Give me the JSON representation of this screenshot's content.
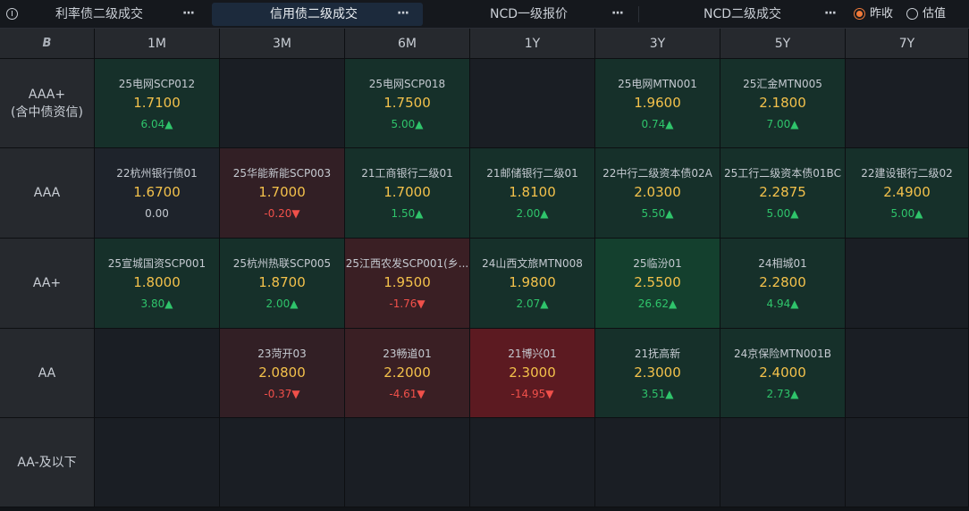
{
  "tabs": [
    {
      "label": "利率债二级成交",
      "active": false
    },
    {
      "label": "信用债二级成交",
      "active": true
    },
    {
      "label": "NCD一级报价",
      "active": false
    },
    {
      "label": "NCD二级成交",
      "active": false
    }
  ],
  "more_glyph": "···",
  "radios": [
    {
      "label": "昨收",
      "checked": true
    },
    {
      "label": "估值",
      "checked": false
    }
  ],
  "columns": [
    "1M",
    "3M",
    "6M",
    "1Y",
    "3Y",
    "5Y",
    "7Y"
  ],
  "corner_icon": "B",
  "rows": [
    {
      "label": [
        "AAA+",
        "(含中债资信)"
      ],
      "cells": [
        {
          "name": "25电网SCP012",
          "rate": "1.7100",
          "change": "6.04▲",
          "dir": "up",
          "tone": "up1"
        },
        null,
        {
          "name": "25电网SCP018",
          "rate": "1.7500",
          "change": "5.00▲",
          "dir": "up",
          "tone": "up1"
        },
        null,
        {
          "name": "25电网MTN001",
          "rate": "1.9600",
          "change": "0.74▲",
          "dir": "up",
          "tone": "up1"
        },
        {
          "name": "25汇金MTN005",
          "rate": "2.1800",
          "change": "7.00▲",
          "dir": "up",
          "tone": "up1"
        },
        null
      ]
    },
    {
      "label": [
        "AAA"
      ],
      "cells": [
        {
          "name": "22杭州银行债01",
          "rate": "1.6700",
          "change": "0.00",
          "dir": "zero",
          "tone": "flat"
        },
        {
          "name": "25华能新能SCP003",
          "rate": "1.7000",
          "change": "-0.20▼",
          "dir": "down",
          "tone": "dn1"
        },
        {
          "name": "21工商银行二级01",
          "rate": "1.7000",
          "change": "1.50▲",
          "dir": "up",
          "tone": "up1"
        },
        {
          "name": "21邮储银行二级01",
          "rate": "1.8100",
          "change": "2.00▲",
          "dir": "up",
          "tone": "up1"
        },
        {
          "name": "22中行二级资本债02A",
          "rate": "2.0300",
          "change": "5.50▲",
          "dir": "up",
          "tone": "up1"
        },
        {
          "name": "25工行二级资本债01BC",
          "rate": "2.2875",
          "change": "5.00▲",
          "dir": "up",
          "tone": "up1"
        },
        {
          "name": "22建设银行二级02",
          "rate": "2.4900",
          "change": "5.00▲",
          "dir": "up",
          "tone": "up1"
        }
      ]
    },
    {
      "label": [
        "AA+"
      ],
      "cells": [
        {
          "name": "25宣城国资SCP001",
          "rate": "1.8000",
          "change": "3.80▲",
          "dir": "up",
          "tone": "up1"
        },
        {
          "name": "25杭州热联SCP005",
          "rate": "1.8700",
          "change": "2.00▲",
          "dir": "up",
          "tone": "up1"
        },
        {
          "name": "25江西农发SCP001(乡...",
          "rate": "1.9500",
          "change": "-1.76▼",
          "dir": "down",
          "tone": "dn2"
        },
        {
          "name": "24山西文旅MTN008",
          "rate": "1.9800",
          "change": "2.07▲",
          "dir": "up",
          "tone": "up1"
        },
        {
          "name": "25临汾01",
          "rate": "2.5500",
          "change": "26.62▲",
          "dir": "up",
          "tone": "up2"
        },
        {
          "name": "24相城01",
          "rate": "2.2800",
          "change": "4.94▲",
          "dir": "up",
          "tone": "up1"
        },
        null
      ]
    },
    {
      "label": [
        "AA"
      ],
      "cells": [
        null,
        {
          "name": "23菏开03",
          "rate": "2.0800",
          "change": "-0.37▼",
          "dir": "down",
          "tone": "dn1"
        },
        {
          "name": "23畅道01",
          "rate": "2.2000",
          "change": "-4.61▼",
          "dir": "down",
          "tone": "dn2"
        },
        {
          "name": "21博兴01",
          "rate": "2.3000",
          "change": "-14.95▼",
          "dir": "down",
          "tone": "dn3"
        },
        {
          "name": "21抚高新",
          "rate": "2.3000",
          "change": "3.51▲",
          "dir": "up",
          "tone": "up1"
        },
        {
          "name": "24京保险MTN001B",
          "rate": "2.4000",
          "change": "2.73▲",
          "dir": "up",
          "tone": "up1"
        },
        null
      ]
    },
    {
      "label": [
        "AA-及以下"
      ],
      "cells": [
        null,
        null,
        null,
        null,
        null,
        null,
        null
      ]
    }
  ]
}
